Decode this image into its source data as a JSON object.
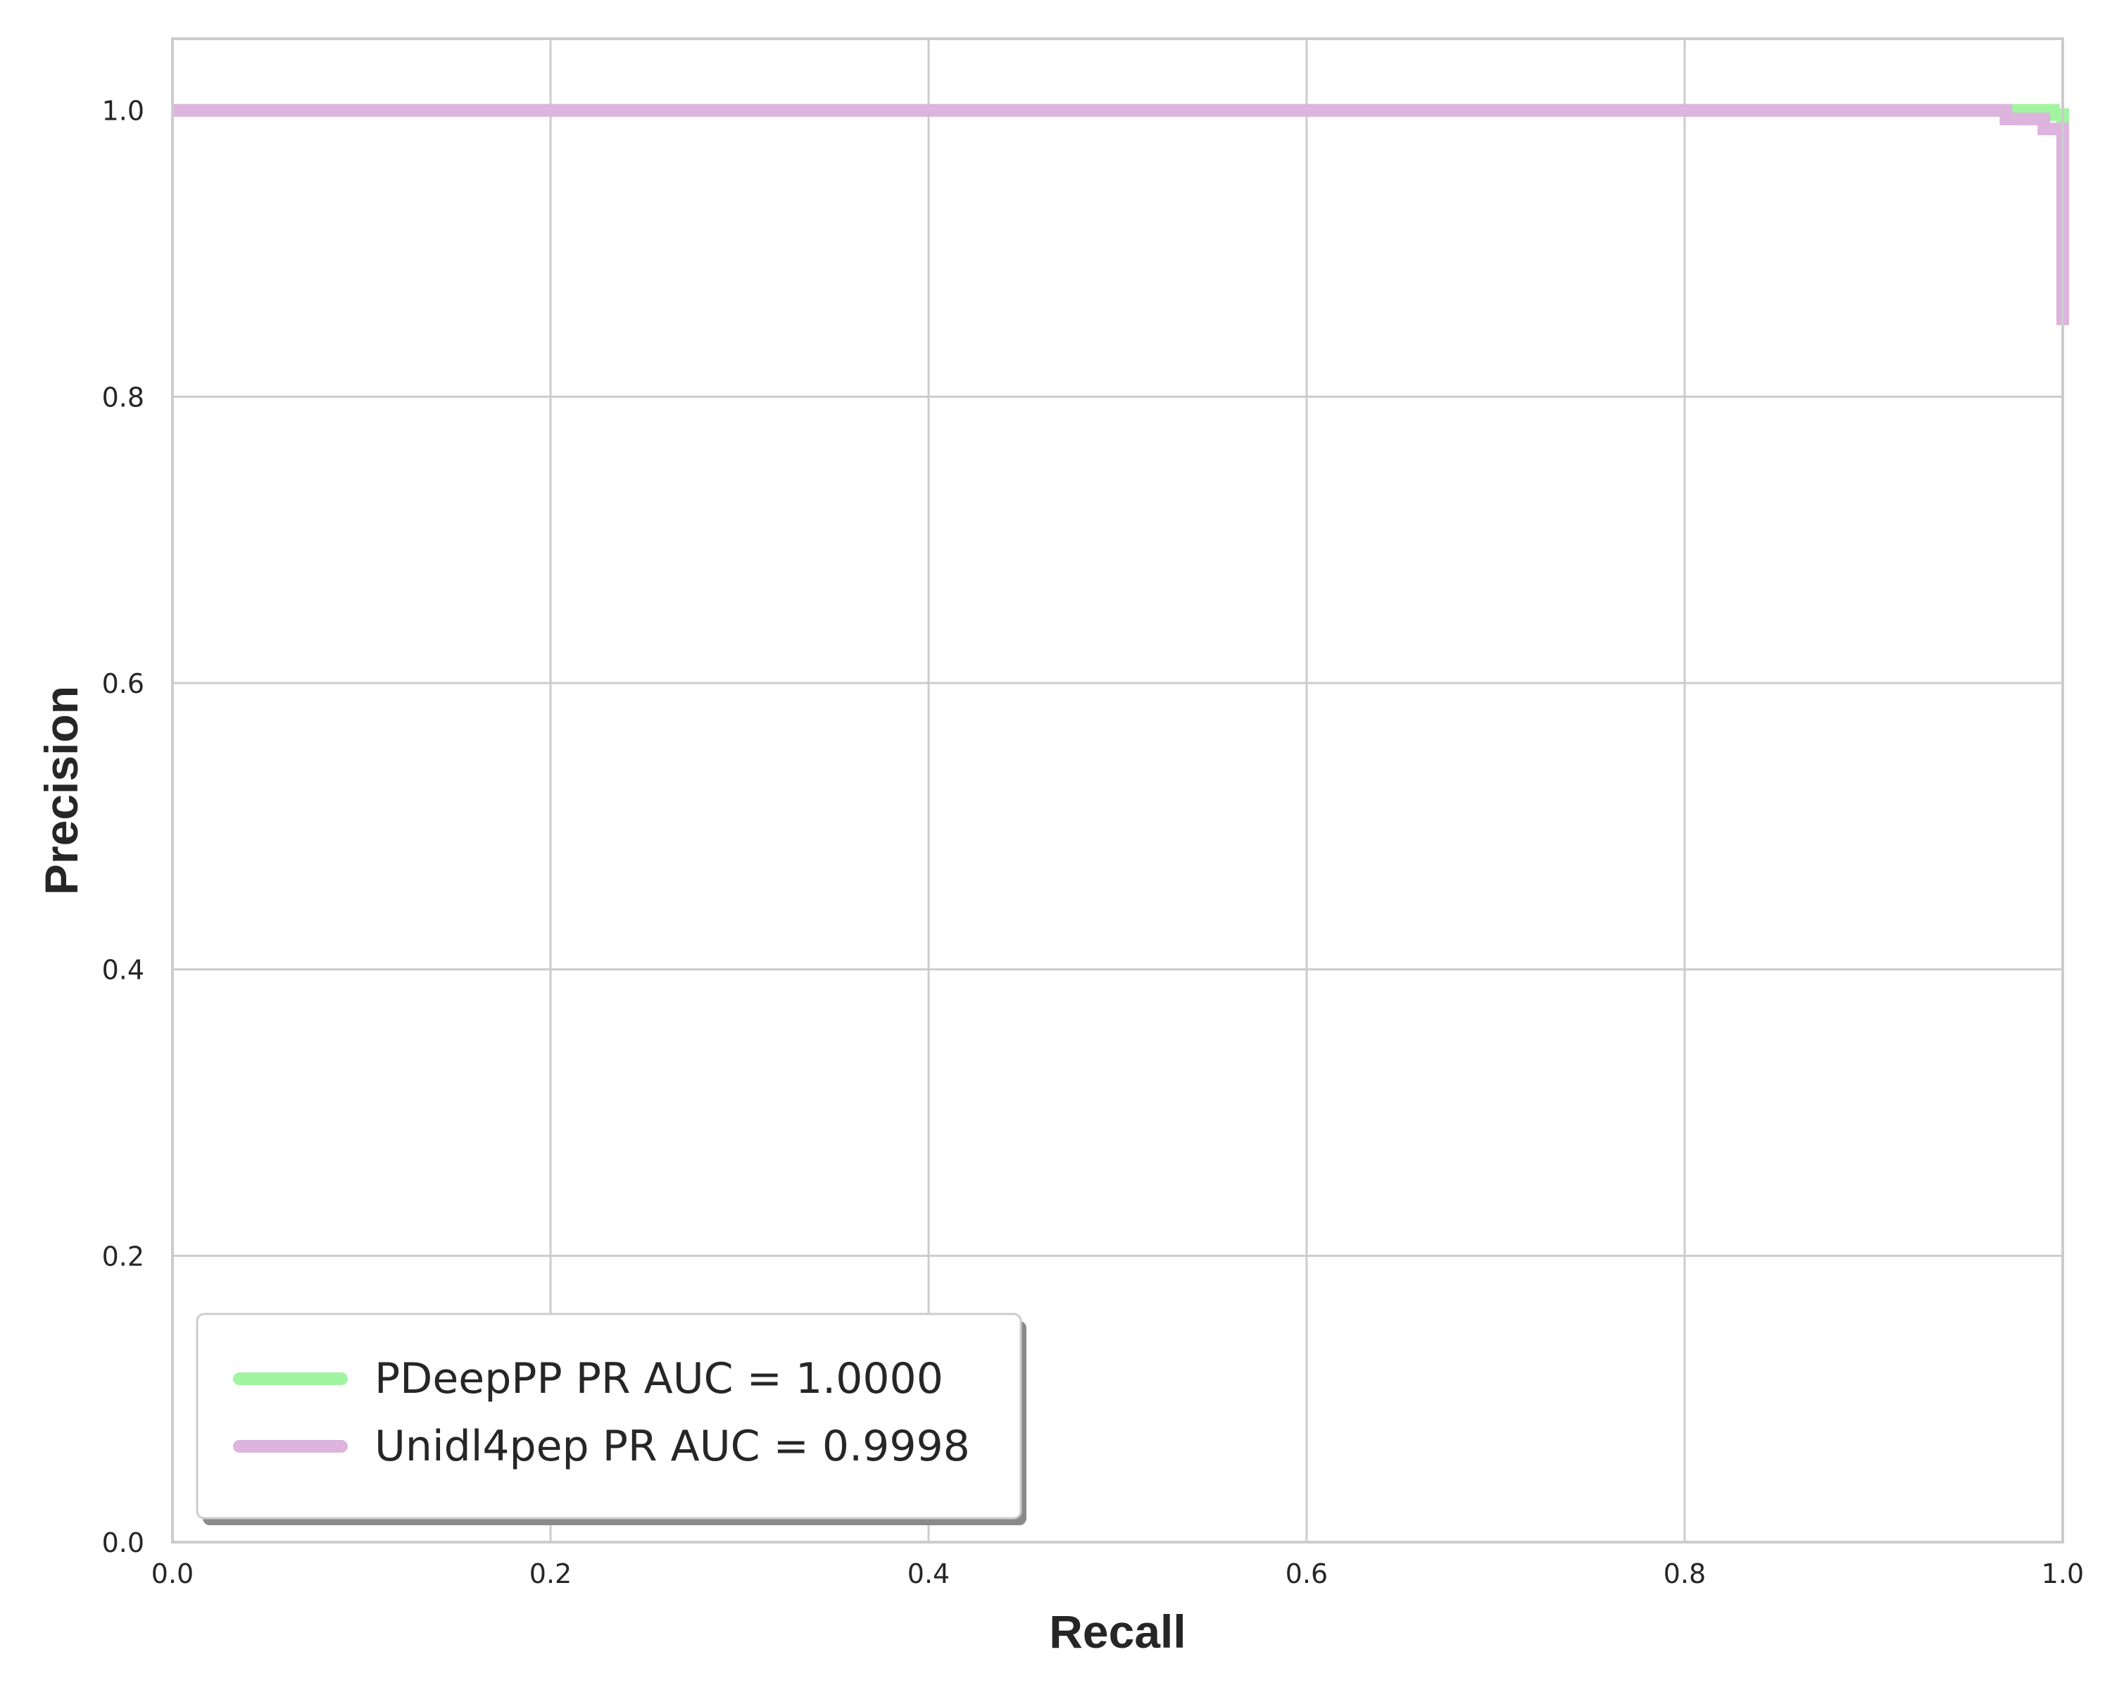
{
  "chart_data": {
    "type": "line",
    "title": "",
    "xlabel": "Recall",
    "ylabel": "Precision",
    "xlim": [
      0.0,
      1.0
    ],
    "ylim": [
      0.0,
      1.05
    ],
    "xticks": [
      "0.0",
      "0.2",
      "0.4",
      "0.6",
      "0.8",
      "1.0"
    ],
    "yticks": [
      "0.0",
      "0.2",
      "0.4",
      "0.6",
      "0.8",
      "1.0"
    ],
    "grid": true,
    "legend_position": "lower-left",
    "series": [
      {
        "name": "PDeepPP PR AUC = 1.0000",
        "color": "#a2f5a0",
        "step": true,
        "points": [
          [
            0.0,
            1.0
          ],
          [
            0.995,
            1.0
          ],
          [
            0.995,
            0.997
          ],
          [
            1.0,
            0.997
          ],
          [
            1.0,
            0.85
          ]
        ]
      },
      {
        "name": "Unidl4pep PR AUC = 0.9998",
        "color": "#ddb4dd",
        "step": true,
        "points": [
          [
            0.0,
            1.0
          ],
          [
            0.97,
            1.0
          ],
          [
            0.97,
            0.994
          ],
          [
            0.99,
            0.994
          ],
          [
            0.99,
            0.987
          ],
          [
            1.0,
            0.987
          ],
          [
            1.0,
            0.85
          ]
        ]
      }
    ]
  }
}
